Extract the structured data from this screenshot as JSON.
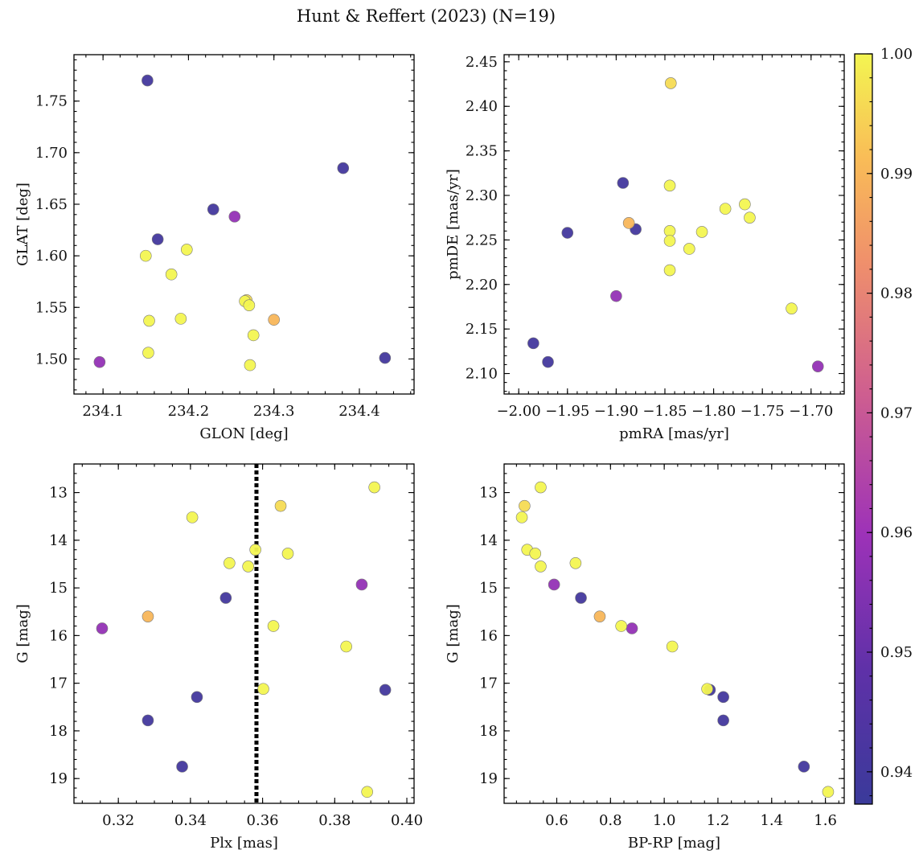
{
  "figure": {
    "title": "Hunt & Reffert (2023) (N=19)"
  },
  "colorbar": {
    "min": 0.9373,
    "max": 1.0,
    "ticks": [
      0.94,
      0.95,
      0.96,
      0.97,
      0.98,
      0.99,
      1.0
    ],
    "tick_labels": [
      "0.94",
      "0.95",
      "0.96",
      "0.97",
      "0.98",
      "0.99",
      "1.00"
    ],
    "colormap": "plasma"
  },
  "stars": [
    {
      "glon": 234.152,
      "glat": 1.77,
      "pmra": -1.893,
      "pmde": 2.314,
      "plx": 0.3498,
      "g": 15.21,
      "bprp": 0.69,
      "prob": 0.94
    },
    {
      "glon": 234.381,
      "glat": 1.685,
      "pmra": -1.95,
      "pmde": 2.258,
      "plx": 0.394,
      "g": 17.14,
      "bprp": 1.17,
      "prob": 0.94
    },
    {
      "glon": 234.229,
      "glat": 1.645,
      "pmra": -1.985,
      "pmde": 2.134,
      "plx": 0.3418,
      "g": 17.29,
      "bprp": 1.22,
      "prob": 0.94
    },
    {
      "glon": 234.164,
      "glat": 1.616,
      "pmra": -1.88,
      "pmde": 2.262,
      "plx": 0.3282,
      "g": 17.78,
      "bprp": 1.22,
      "prob": 0.94
    },
    {
      "glon": 234.43,
      "glat": 1.501,
      "pmra": -1.97,
      "pmde": 2.113,
      "plx": 0.3377,
      "g": 18.75,
      "bprp": 1.52,
      "prob": 0.94
    },
    {
      "glon": 234.254,
      "glat": 1.638,
      "pmra": -1.9,
      "pmde": 2.187,
      "plx": 0.3875,
      "g": 14.93,
      "bprp": 0.59,
      "prob": 0.958
    },
    {
      "glon": 234.096,
      "glat": 1.497,
      "pmra": -1.693,
      "pmde": 2.108,
      "plx": 0.3155,
      "g": 15.85,
      "bprp": 0.88,
      "prob": 0.958
    },
    {
      "glon": 234.3,
      "glat": 1.538,
      "pmra": -1.887,
      "pmde": 2.269,
      "plx": 0.3282,
      "g": 15.6,
      "bprp": 0.76,
      "prob": 0.99
    },
    {
      "glon": 234.268,
      "glat": 1.557,
      "pmra": -1.844,
      "pmde": 2.426,
      "plx": 0.365,
      "g": 13.28,
      "bprp": 0.48,
      "prob": 0.996
    },
    {
      "glon": 234.15,
      "glat": 1.6,
      "pmra": -1.845,
      "pmde": 2.311,
      "plx": 0.391,
      "g": 12.89,
      "bprp": 0.54,
      "prob": 1.0
    },
    {
      "glon": 234.198,
      "glat": 1.606,
      "pmra": -1.845,
      "pmde": 2.26,
      "plx": 0.3405,
      "g": 13.52,
      "bprp": 0.47,
      "prob": 1.0
    },
    {
      "glon": 234.18,
      "glat": 1.582,
      "pmra": -1.812,
      "pmde": 2.259,
      "plx": 0.358,
      "g": 14.2,
      "bprp": 0.49,
      "prob": 1.0
    },
    {
      "glon": 234.266,
      "glat": 1.556,
      "pmra": -1.845,
      "pmde": 2.249,
      "plx": 0.367,
      "g": 14.28,
      "bprp": 0.52,
      "prob": 1.0
    },
    {
      "glon": 234.154,
      "glat": 1.537,
      "pmra": -1.788,
      "pmde": 2.285,
      "plx": 0.3508,
      "g": 14.48,
      "bprp": 0.67,
      "prob": 1.0
    },
    {
      "glon": 234.191,
      "glat": 1.539,
      "pmra": -1.768,
      "pmde": 2.29,
      "plx": 0.356,
      "g": 14.55,
      "bprp": 0.54,
      "prob": 1.0
    },
    {
      "glon": 234.271,
      "glat": 1.552,
      "pmra": -1.763,
      "pmde": 2.275,
      "plx": 0.363,
      "g": 15.8,
      "bprp": 0.84,
      "prob": 1.0
    },
    {
      "glon": 234.153,
      "glat": 1.506,
      "pmra": -1.825,
      "pmde": 2.24,
      "plx": 0.3832,
      "g": 16.23,
      "bprp": 1.03,
      "prob": 1.0
    },
    {
      "glon": 234.276,
      "glat": 1.523,
      "pmra": -1.845,
      "pmde": 2.216,
      "plx": 0.3602,
      "g": 17.12,
      "bprp": 1.16,
      "prob": 1.0
    },
    {
      "glon": 234.272,
      "glat": 1.494,
      "pmra": -1.72,
      "pmde": 2.173,
      "plx": 0.389,
      "g": 19.28,
      "bprp": 1.61,
      "prob": 1.0
    }
  ],
  "chart_data": [
    {
      "type": "scatter",
      "xlabel": "GLON [deg]",
      "ylabel": "GLAT [deg]",
      "x_field": "glon",
      "y_field": "glat",
      "xlim": [
        234.066,
        234.464
      ],
      "ylim": [
        1.466,
        1.795
      ],
      "xticks": [
        234.1,
        234.2,
        234.3,
        234.4
      ],
      "xtick_labels": [
        "234.1",
        "234.2",
        "234.3",
        "234.4"
      ],
      "yticks": [
        1.5,
        1.55,
        1.6,
        1.65,
        1.7,
        1.75
      ],
      "ytick_labels": [
        "1.50",
        "1.55",
        "1.60",
        "1.65",
        "1.70",
        "1.75"
      ],
      "xminor": 0.02,
      "yminor": 0.01,
      "y_inverted": false
    },
    {
      "type": "scatter",
      "xlabel": "pmRA [mas/yr]",
      "ylabel": "pmDE [mas/yr]",
      "x_field": "pmra",
      "y_field": "pmde",
      "xlim": [
        -2.015,
        -1.666
      ],
      "ylim": [
        2.077,
        2.458
      ],
      "xticks": [
        -2.0,
        -1.95,
        -1.9,
        -1.85,
        -1.8,
        -1.75,
        -1.7
      ],
      "xtick_labels": [
        "−2.00",
        "−1.95",
        "−1.90",
        "−1.85",
        "−1.80",
        "−1.75",
        "−1.70"
      ],
      "yticks": [
        2.1,
        2.15,
        2.2,
        2.25,
        2.3,
        2.35,
        2.4,
        2.45
      ],
      "ytick_labels": [
        "2.10",
        "2.15",
        "2.20",
        "2.25",
        "2.30",
        "2.35",
        "2.40",
        "2.45"
      ],
      "xminor": 0.01,
      "yminor": 0.01,
      "y_inverted": false
    },
    {
      "type": "scatter",
      "xlabel": "Plx [mas]",
      "ylabel": "G [mag]",
      "x_field": "plx",
      "y_field": "g",
      "xlim": [
        0.3077,
        0.402
      ],
      "ylim": [
        19.52,
        12.4
      ],
      "xticks": [
        0.32,
        0.34,
        0.36,
        0.38,
        0.4
      ],
      "xtick_labels": [
        "0.32",
        "0.34",
        "0.36",
        "0.38",
        "0.40"
      ],
      "yticks": [
        13,
        14,
        15,
        16,
        17,
        18,
        19
      ],
      "ytick_labels": [
        "13",
        "14",
        "15",
        "16",
        "17",
        "18",
        "19"
      ],
      "xminor": 0.005,
      "yminor": 0.2,
      "y_inverted": true,
      "vline": 0.3583
    },
    {
      "type": "scatter",
      "xlabel": "BP-RP [mag]",
      "ylabel": "G [mag]",
      "x_field": "bprp",
      "y_field": "g",
      "xlim": [
        0.404,
        1.67
      ],
      "ylim": [
        19.52,
        12.4
      ],
      "xticks": [
        0.6,
        0.8,
        1.0,
        1.2,
        1.4,
        1.6
      ],
      "xtick_labels": [
        "0.6",
        "0.8",
        "1.0",
        "1.2",
        "1.4",
        "1.6"
      ],
      "yticks": [
        13,
        14,
        15,
        16,
        17,
        18,
        19
      ],
      "ytick_labels": [
        "13",
        "14",
        "15",
        "16",
        "17",
        "18",
        "19"
      ],
      "xminor": 0.05,
      "yminor": 0.2,
      "y_inverted": true
    }
  ]
}
